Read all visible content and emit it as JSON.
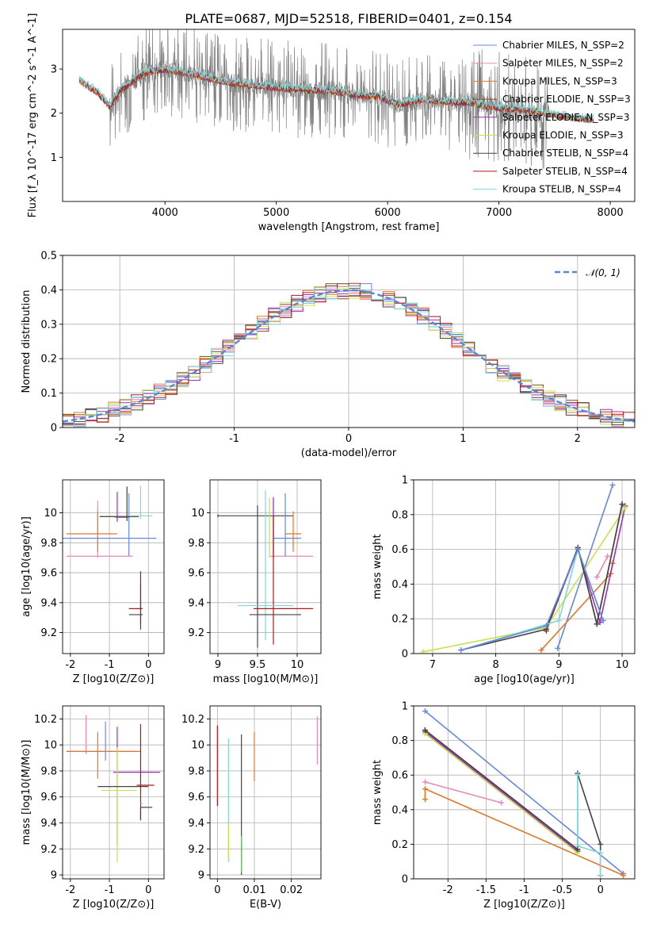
{
  "figure": {
    "title": "PLATE=0687, MJD=52518, FIBERID=0401, z=0.154",
    "series_colors": [
      "#6688dd",
      "#e88ab8",
      "#e0782a",
      "#8f4a12",
      "#9a30b8",
      "#c9e050",
      "#444444",
      "#b01818",
      "#7fd6d6"
    ]
  },
  "chart_data": [
    {
      "id": "spectrum",
      "type": "line",
      "xlabel": "wavelength [Angstrom, rest frame]",
      "ylabel": "Flux [f_λ 10^-17 erg cm^-2 s^-1 A^-1]",
      "xlim": [
        3080,
        8220
      ],
      "ylim": [
        0,
        3.9
      ],
      "xticks": [
        4000,
        5000,
        6000,
        7000,
        8000
      ],
      "yticks": [
        1,
        2,
        3
      ],
      "grid": false,
      "legend_placement": "right",
      "legend": [
        "Chabrier MILES, N_SSP=2",
        "Salpeter MILES, N_SSP=2",
        "Kroupa MILES, N_SSP=3",
        "Chabrier ELODIE, N_SSP=3",
        "Salpeter ELODIE, N_SSP=3",
        "Kroupa ELODIE, N_SSP=3",
        "Chabrier STELIB, N_SSP=4",
        "Salpeter STELIB, N_SSP=4",
        "Kroupa STELIB, N_SSP=4"
      ],
      "continuum_x": [
        3230,
        3300,
        3400,
        3500,
        3600,
        3700,
        3800,
        3900,
        4000,
        4100,
        4300,
        4500,
        4700,
        4900,
        5100,
        5300,
        5500,
        5700,
        5900,
        6100,
        6300,
        6500,
        6700,
        6900,
        7100,
        7300,
        7500,
        7700,
        7850
      ],
      "continuum_y": [
        2.75,
        2.62,
        2.45,
        2.15,
        2.5,
        2.7,
        2.9,
        2.95,
        3.0,
        2.95,
        2.85,
        2.72,
        2.65,
        2.6,
        2.55,
        2.52,
        2.5,
        2.42,
        2.38,
        2.2,
        2.3,
        2.25,
        2.25,
        2.15,
        2.1,
        2.05,
        1.95,
        1.88,
        1.85
      ]
    },
    {
      "id": "residuals",
      "type": "line",
      "xlabel": "(data-model)/error",
      "ylabel": "Normed distribution",
      "xlim": [
        -2.5,
        2.5
      ],
      "ylim": [
        0,
        0.5
      ],
      "xticks": [
        -2,
        -1,
        0,
        1,
        2
      ],
      "yticks": [
        0.0,
        0.1,
        0.2,
        0.3,
        0.4,
        0.5
      ],
      "grid": true,
      "legend_placement": "top-right",
      "legend": [
        "𝒩(0, 1)"
      ],
      "bin_width": 0.1
    },
    {
      "id": "age-vs-z",
      "type": "scatter",
      "xlabel": "Z [log10(Z/Z⊙)]",
      "ylabel": "age  [log10(age/yr)]",
      "xlim": [
        -2.2,
        0.4
      ],
      "ylim": [
        9.06,
        10.22
      ],
      "xticks": [
        -2,
        -1,
        0
      ],
      "yticks": [
        9.2,
        9.4,
        9.6,
        9.8,
        10.0
      ],
      "grid": true,
      "points": [
        {
          "x": -0.5,
          "xerr": [
            1.7,
            0.7
          ],
          "y": 9.83,
          "yerr": [
            0.12,
            0.3
          ],
          "color": "#6688dd"
        },
        {
          "x": -1.3,
          "xerr": [
            0.8,
            0.9
          ],
          "y": 9.71,
          "yerr": [
            0.01,
            0.37
          ],
          "color": "#e88ab8"
        },
        {
          "x": -1.3,
          "xerr": [
            0.8,
            0.5
          ],
          "y": 9.86,
          "yerr": [
            0.12,
            0.15
          ],
          "color": "#e0782a"
        },
        {
          "x": -0.8,
          "xerr": [
            0.05,
            0.3
          ],
          "y": 9.97,
          "yerr": [
            0.03,
            0.17
          ],
          "color": "#9a30b8"
        },
        {
          "x": -0.55,
          "xerr": [
            0.7,
            0.3
          ],
          "y": 9.975,
          "yerr": [
            0.03,
            0.2
          ],
          "color": "#c9e050"
        },
        {
          "x": -0.55,
          "xerr": [
            0.7,
            0.3
          ],
          "y": 9.975,
          "yerr": [
            0.03,
            0.2
          ],
          "color": "#444444"
        },
        {
          "x": -0.2,
          "xerr": [
            0.3,
            0.3
          ],
          "y": 9.98,
          "yerr": [
            0.02,
            0.2
          ],
          "color": "#7fd6d6"
        },
        {
          "x": -0.2,
          "xerr": [
            0.3,
            0.05
          ],
          "y": 9.36,
          "yerr": [
            0.1,
            0.25
          ],
          "color": "#b01818"
        },
        {
          "x": -0.2,
          "xerr": [
            0.3,
            0.05
          ],
          "y": 9.32,
          "yerr": [
            0.1,
            0.2
          ],
          "color": "#444444"
        }
      ]
    },
    {
      "id": "age-vs-mass",
      "type": "scatter",
      "xlabel": "mass [log10(M/M⊙)]",
      "ylabel": "",
      "xlim": [
        8.9,
        10.3
      ],
      "ylim": [
        9.06,
        10.22
      ],
      "xticks": [
        9.0,
        9.5,
        10.0
      ],
      "yticks": [
        9.2,
        9.4,
        9.6,
        9.8,
        10.0
      ],
      "grid": true,
      "points": [
        {
          "x": 9.0,
          "xerr": [
            0.0,
            0.95
          ],
          "y": 9.98,
          "yerr": [
            0.01,
            0.01
          ],
          "color": "#444444"
        },
        {
          "x": 9.7,
          "xerr": [
            0.05,
            0.5
          ],
          "y": 9.71,
          "yerr": [
            0.02,
            0.4
          ],
          "color": "#e88ab8"
        },
        {
          "x": 9.85,
          "xerr": [
            0.15,
            0.2
          ],
          "y": 9.83,
          "yerr": [
            0.12,
            0.3
          ],
          "color": "#6688dd"
        },
        {
          "x": 9.95,
          "xerr": [
            0.1,
            0.1
          ],
          "y": 9.86,
          "yerr": [
            0.12,
            0.15
          ],
          "color": "#e0782a"
        },
        {
          "x": 9.7,
          "xerr": [
            0.0,
            0.0
          ],
          "y": 9.9,
          "yerr": [
            0.2,
            0.2
          ],
          "color": "#9a30b8"
        },
        {
          "x": 9.65,
          "xerr": [
            0.0,
            0.0
          ],
          "y": 9.9,
          "yerr": [
            0.2,
            0.2
          ],
          "color": "#c9e050"
        },
        {
          "x": 9.6,
          "xerr": [
            0.0,
            0.0
          ],
          "y": 9.65,
          "yerr": [
            0.5,
            0.5
          ],
          "color": "#7fd6d6"
        },
        {
          "x": 9.5,
          "xerr": [
            0.0,
            0.0
          ],
          "y": 9.65,
          "yerr": [
            0.55,
            0.4
          ],
          "color": "#444444"
        },
        {
          "x": 9.7,
          "xerr": [
            0.25,
            0.5
          ],
          "y": 9.36,
          "yerr": [
            0.24,
            0.62
          ],
          "color": "#b01818"
        },
        {
          "x": 9.6,
          "xerr": [
            0.2,
            0.45
          ],
          "y": 9.32,
          "yerr": [
            0.0,
            0.0
          ],
          "color": "#444444"
        },
        {
          "x": 9.6,
          "xerr": [
            0.35,
            0.35
          ],
          "y": 9.38,
          "yerr": [
            0.0,
            0.0
          ],
          "color": "#7fd6d6"
        }
      ]
    },
    {
      "id": "mass-weight-vs-age",
      "type": "line",
      "xlabel": "age  [log10(age/yr)]",
      "ylabel": "mass weight",
      "xlim": [
        6.7,
        10.2
      ],
      "ylim": [
        0,
        1
      ],
      "xticks": [
        7,
        8,
        9,
        10
      ],
      "yticks": [
        0.0,
        0.2,
        0.4,
        0.6,
        0.8,
        1.0
      ],
      "grid": true,
      "series": [
        {
          "color": "#6688dd",
          "x": [
            8.98,
            9.85
          ],
          "y": [
            0.03,
            0.97
          ]
        },
        {
          "color": "#e88ab8",
          "x": [
            9.6,
            9.77
          ],
          "y": [
            0.44,
            0.56
          ]
        },
        {
          "color": "#e0782a",
          "x": [
            8.72,
            9.82,
            9.85
          ],
          "y": [
            0.02,
            0.46,
            0.52
          ]
        },
        {
          "color": "#8f4a12",
          "x": [
            8.8,
            9.3,
            9.6,
            10.0
          ],
          "y": [
            0.13,
            0.61,
            0.17,
            0.86
          ]
        },
        {
          "color": "#9a30b8",
          "x": [
            8.8,
            9.3,
            9.65,
            10.05
          ],
          "y": [
            0.14,
            0.6,
            0.18,
            0.85
          ]
        },
        {
          "color": "#c9e050",
          "x": [
            6.85,
            8.8,
            10.05
          ],
          "y": [
            0.01,
            0.15,
            0.84
          ]
        },
        {
          "color": "#444444",
          "x": [
            7.45,
            8.8,
            9.3,
            9.6,
            10.0
          ],
          "y": [
            0.02,
            0.14,
            0.61,
            0.17,
            0.86
          ]
        },
        {
          "color": "#7fd6d6",
          "x": [
            7.45,
            9.0,
            9.3,
            9.7
          ],
          "y": [
            0.02,
            0.19,
            0.6,
            0.19
          ]
        },
        {
          "color": "#6688dd",
          "x": [
            7.45,
            8.8,
            9.3,
            9.7
          ],
          "y": [
            0.02,
            0.16,
            0.6,
            0.19
          ]
        }
      ]
    },
    {
      "id": "mass-vs-z",
      "type": "scatter",
      "xlabel": "Z [log10(Z/Z⊙)]",
      "ylabel": "mass [log10(M/M⊙)]",
      "xlim": [
        -2.2,
        0.4
      ],
      "ylim": [
        8.97,
        10.3
      ],
      "xticks": [
        -2,
        -1,
        0
      ],
      "yticks": [
        9.0,
        9.2,
        9.4,
        9.6,
        9.8,
        10.0,
        10.2
      ],
      "grid": true,
      "points": [
        {
          "x": -1.6,
          "xerr": [
            0.0,
            0.0
          ],
          "y": 10.05,
          "yerr": [
            0.12,
            0.18
          ],
          "color": "#e88ab8"
        },
        {
          "x": -1.3,
          "xerr": [
            0.0,
            0.0
          ],
          "y": 9.92,
          "yerr": [
            0.18,
            0.18
          ],
          "color": "#e0782a"
        },
        {
          "x": -1.1,
          "xerr": [
            0.0,
            0.0
          ],
          "y": 10.0,
          "yerr": [
            0.12,
            0.18
          ],
          "color": "#6688dd"
        },
        {
          "x": -0.6,
          "xerr": [
            1.5,
            0.3
          ],
          "y": 9.95,
          "yerr": [
            0.0,
            0.0
          ],
          "color": "#6688dd"
        },
        {
          "x": -0.9,
          "xerr": [
            1.2,
            0.7
          ],
          "y": 9.95,
          "yerr": [
            0.0,
            0.0
          ],
          "color": "#e0782a"
        },
        {
          "x": -0.8,
          "xerr": [
            0.1,
            1.1
          ],
          "y": 9.79,
          "yerr": [
            0.57,
            0.35
          ],
          "color": "#9a30b8"
        },
        {
          "x": -0.8,
          "xerr": [
            0.4,
            0.5
          ],
          "y": 9.65,
          "yerr": [
            0.55,
            0.33
          ],
          "color": "#c9e050"
        },
        {
          "x": -0.9,
          "xerr": [
            0.4,
            0.9
          ],
          "y": 9.68,
          "yerr": [
            0.0,
            0.0
          ],
          "color": "#444444"
        },
        {
          "x": -0.2,
          "xerr": [
            0.1,
            0.35
          ],
          "y": 9.69,
          "yerr": [
            0.27,
            0.47
          ],
          "color": "#b01818"
        },
        {
          "x": -0.2,
          "xerr": [
            0.0,
            0.3
          ],
          "y": 9.52,
          "yerr": [
            0.1,
            0.0
          ],
          "color": "#444444"
        },
        {
          "x": -0.2,
          "xerr": [
            0.0,
            0.05
          ],
          "y": 9.55,
          "yerr": [
            0.0,
            0.0
          ],
          "color": "#7fd6d6"
        }
      ]
    },
    {
      "id": "mass-vs-ebv",
      "type": "scatter",
      "xlabel": "E(B-V)",
      "ylabel": "",
      "xlim": [
        -0.002,
        0.028
      ],
      "ylim": [
        8.97,
        10.3
      ],
      "xticks": [
        0.0,
        0.01,
        0.02
      ],
      "yticks": [
        9.0,
        9.2,
        9.4,
        9.6,
        9.8,
        10.0,
        10.2
      ],
      "grid": true,
      "points": [
        {
          "x": 0.0,
          "y": 9.85,
          "yerr": [
            0.32,
            0.3
          ],
          "color": "#b01818"
        },
        {
          "x": 0.003,
          "y": 9.55,
          "yerr": [
            0.45,
            0.5
          ],
          "color": "#7fd6d6"
        },
        {
          "x": 0.003,
          "y": 9.3,
          "yerr": [
            0.18,
            0.1
          ],
          "color": "#c9e050"
        },
        {
          "x": 0.0065,
          "y": 9.55,
          "yerr": [
            0.55,
            0.53
          ],
          "color": "#444444"
        },
        {
          "x": 0.0065,
          "y": 9.3,
          "yerr": [
            0.28,
            0.0
          ],
          "color": "#6abf69"
        },
        {
          "x": 0.01,
          "y": 9.9,
          "yerr": [
            0.18,
            0.2
          ],
          "color": "#e0782a"
        },
        {
          "x": 0.027,
          "y": 10.05,
          "yerr": [
            0.2,
            0.17
          ],
          "color": "#e88ab8"
        }
      ]
    },
    {
      "id": "mass-weight-vs-z",
      "type": "line",
      "xlabel": "Z [log10(Z/Z⊙)]",
      "ylabel": "mass weight",
      "xlim": [
        -2.45,
        0.45
      ],
      "ylim": [
        0,
        1
      ],
      "xticks": [
        -2.0,
        -1.5,
        -1.0,
        -0.5,
        0.0
      ],
      "yticks": [
        0.0,
        0.2,
        0.4,
        0.6,
        0.8,
        1.0
      ],
      "grid": true,
      "series": [
        {
          "color": "#6688dd",
          "x": [
            -2.3,
            0.3
          ],
          "y": [
            0.97,
            0.03
          ]
        },
        {
          "color": "#e88ab8",
          "x": [
            -2.3,
            -1.3
          ],
          "y": [
            0.56,
            0.44
          ]
        },
        {
          "color": "#e0782a",
          "x": [
            -2.3,
            -2.3,
            0.3
          ],
          "y": [
            0.46,
            0.52,
            0.02
          ]
        },
        {
          "color": "#444444",
          "x": [
            -2.3,
            -0.3,
            -0.3,
            0.0,
            0.0
          ],
          "y": [
            0.86,
            0.17,
            0.61,
            0.2,
            0.02
          ]
        },
        {
          "color": "#9a30b8",
          "x": [
            -2.3,
            -0.3
          ],
          "y": [
            0.85,
            0.16
          ]
        },
        {
          "color": "#c9e050",
          "x": [
            -2.3,
            -0.3
          ],
          "y": [
            0.84,
            0.15
          ]
        },
        {
          "color": "#7fd6d6",
          "x": [
            -0.3,
            -0.3,
            0.0,
            0.0
          ],
          "y": [
            0.6,
            0.19,
            0.15,
            0.02
          ]
        },
        {
          "color": "#444444",
          "x": [
            -2.3,
            -0.3
          ],
          "y": [
            0.86,
            0.17
          ]
        }
      ]
    }
  ]
}
